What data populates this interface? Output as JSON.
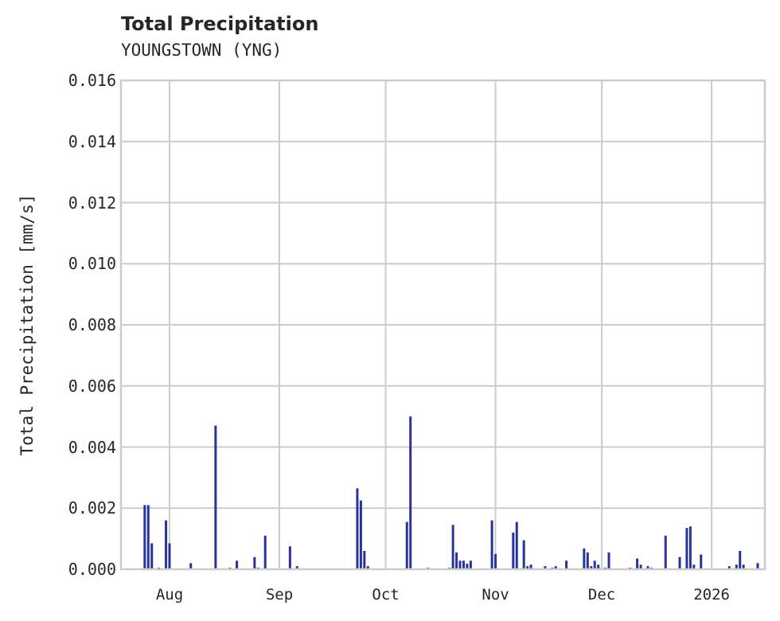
{
  "chart_data": {
    "type": "bar",
    "title": "Total Precipitation",
    "subtitle": "YOUNGSTOWN (YNG)",
    "xlabel": "",
    "ylabel": "Total Precipitation [mm/s]",
    "ylim": [
      0,
      0.016
    ],
    "yticks": [
      "0.000",
      "0.002",
      "0.004",
      "0.006",
      "0.008",
      "0.010",
      "0.012",
      "0.014",
      "0.016"
    ],
    "xticks": [
      "Aug",
      "Sep",
      "Oct",
      "Nov",
      "Dec",
      "2026"
    ],
    "grid": true,
    "legend": null,
    "series_color": "#28339a",
    "series": [
      {
        "name": "Total Precipitation",
        "points": [
          {
            "date": "2025-07-25",
            "value": 0.0021
          },
          {
            "date": "2025-07-26",
            "value": 0.0021
          },
          {
            "date": "2025-07-27",
            "value": 0.00085
          },
          {
            "date": "2025-07-29",
            "value": 5e-05
          },
          {
            "date": "2025-07-31",
            "value": 0.0016
          },
          {
            "date": "2025-08-01",
            "value": 0.00085
          },
          {
            "date": "2025-08-07",
            "value": 0.0002
          },
          {
            "date": "2025-08-14",
            "value": 0.0047
          },
          {
            "date": "2025-08-18",
            "value": 5e-05
          },
          {
            "date": "2025-08-20",
            "value": 0.00028
          },
          {
            "date": "2025-08-25",
            "value": 0.0004
          },
          {
            "date": "2025-08-26",
            "value": 5e-05
          },
          {
            "date": "2025-08-28",
            "value": 0.0011
          },
          {
            "date": "2025-09-04",
            "value": 0.00075
          },
          {
            "date": "2025-09-06",
            "value": 0.0001
          },
          {
            "date": "2025-09-23",
            "value": 0.00265
          },
          {
            "date": "2025-09-24",
            "value": 0.00225
          },
          {
            "date": "2025-09-25",
            "value": 0.0006
          },
          {
            "date": "2025-09-26",
            "value": 0.0001
          },
          {
            "date": "2025-10-07",
            "value": 0.00155
          },
          {
            "date": "2025-10-08",
            "value": 0.005
          },
          {
            "date": "2025-10-13",
            "value": 5e-05
          },
          {
            "date": "2025-10-19",
            "value": 5e-05
          },
          {
            "date": "2025-10-20",
            "value": 0.00145
          },
          {
            "date": "2025-10-21",
            "value": 0.00055
          },
          {
            "date": "2025-10-22",
            "value": 0.00028
          },
          {
            "date": "2025-10-23",
            "value": 0.00028
          },
          {
            "date": "2025-10-24",
            "value": 0.00018
          },
          {
            "date": "2025-10-25",
            "value": 0.00028
          },
          {
            "date": "2025-10-31",
            "value": 0.0016
          },
          {
            "date": "2025-11-01",
            "value": 0.0005
          },
          {
            "date": "2025-11-06",
            "value": 0.0012
          },
          {
            "date": "2025-11-07",
            "value": 0.00155
          },
          {
            "date": "2025-11-09",
            "value": 0.00095
          },
          {
            "date": "2025-11-10",
            "value": 0.0001
          },
          {
            "date": "2025-11-11",
            "value": 0.00015
          },
          {
            "date": "2025-11-15",
            "value": 0.0001
          },
          {
            "date": "2025-11-17",
            "value": 5e-05
          },
          {
            "date": "2025-11-18",
            "value": 0.0001
          },
          {
            "date": "2025-11-21",
            "value": 0.00028
          },
          {
            "date": "2025-11-26",
            "value": 0.00068
          },
          {
            "date": "2025-11-27",
            "value": 0.00055
          },
          {
            "date": "2025-11-28",
            "value": 0.0001
          },
          {
            "date": "2025-11-29",
            "value": 0.00028
          },
          {
            "date": "2025-11-30",
            "value": 0.00015
          },
          {
            "date": "2025-12-02",
            "value": 5e-05
          },
          {
            "date": "2025-12-03",
            "value": 0.00055
          },
          {
            "date": "2025-12-09",
            "value": 5e-05
          },
          {
            "date": "2025-12-11",
            "value": 0.00035
          },
          {
            "date": "2025-12-12",
            "value": 0.00015
          },
          {
            "date": "2025-12-14",
            "value": 0.0001
          },
          {
            "date": "2025-12-15",
            "value": 5e-05
          },
          {
            "date": "2025-12-19",
            "value": 0.0011
          },
          {
            "date": "2025-12-23",
            "value": 0.0004
          },
          {
            "date": "2025-12-25",
            "value": 0.00135
          },
          {
            "date": "2025-12-26",
            "value": 0.0014
          },
          {
            "date": "2025-12-27",
            "value": 0.00015
          },
          {
            "date": "2025-12-29",
            "value": 0.00048
          },
          {
            "date": "2026-01-06",
            "value": 0.0001
          },
          {
            "date": "2026-01-08",
            "value": 0.00015
          },
          {
            "date": "2026-01-09",
            "value": 0.0006
          },
          {
            "date": "2026-01-10",
            "value": 0.00015
          },
          {
            "date": "2026-01-14",
            "value": 0.0002
          }
        ]
      }
    ]
  }
}
